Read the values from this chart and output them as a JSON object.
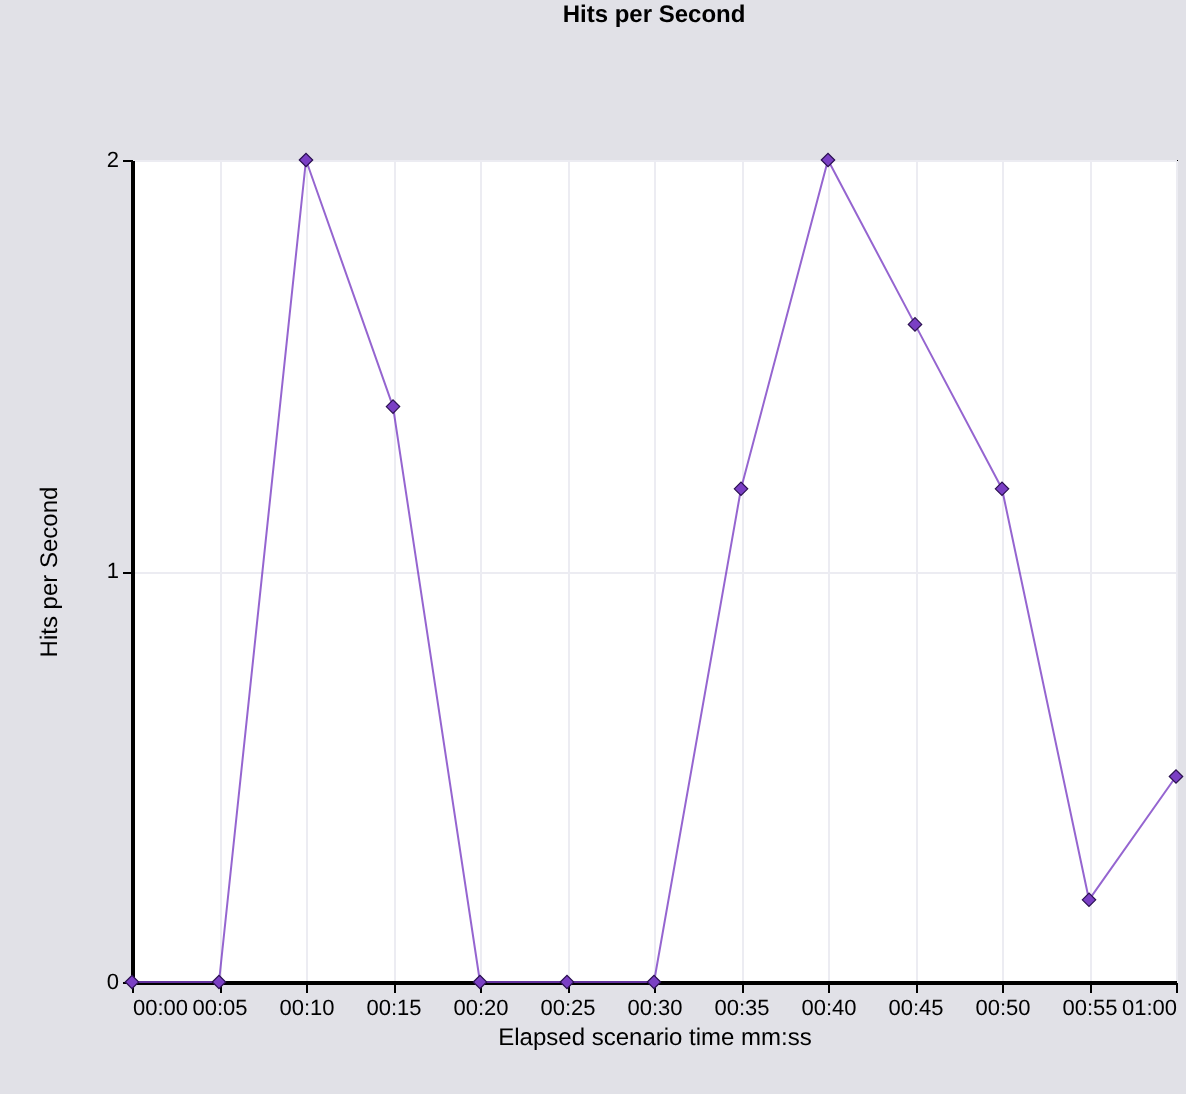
{
  "chart_data": {
    "type": "line",
    "title": "Hits per Second",
    "xlabel": "Elapsed scenario time mm:ss",
    "ylabel": "Hits per Second",
    "categories": [
      "00:00",
      "00:05",
      "00:10",
      "00:15",
      "00:20",
      "00:25",
      "00:30",
      "00:35",
      "00:40",
      "00:45",
      "00:50",
      "00:55",
      "01:00"
    ],
    "series": [
      {
        "color": "#7a3fc4",
        "values": [
          0,
          0,
          2,
          1.4,
          0,
          0,
          0,
          1.2,
          2,
          1.6,
          1.2,
          0.2,
          0.5
        ]
      }
    ],
    "ylim": [
      0,
      2
    ],
    "yticks": [
      0,
      1,
      2
    ],
    "grid": true,
    "marker": "diamond",
    "line_style": "solid",
    "legend": false
  }
}
